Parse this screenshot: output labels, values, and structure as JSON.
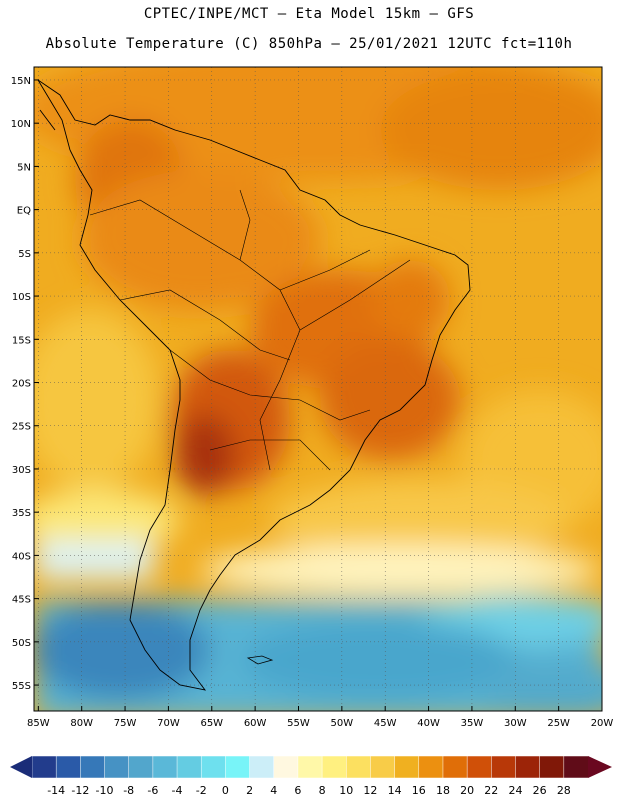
{
  "title": {
    "line1": "CPTEC/INPE/MCT –  Eta Model 15km – GFS",
    "line2": "Absolute Temperature (C) 850hPa – 25/01/2021 12UTC fct=110h"
  },
  "map": {
    "lat_labels": [
      "15N",
      "10N",
      "5N",
      "EQ",
      "5S",
      "10S",
      "15S",
      "20S",
      "25S",
      "30S",
      "35S",
      "40S",
      "45S",
      "50S",
      "55S"
    ],
    "lat_values": [
      15,
      10,
      5,
      0,
      -5,
      -10,
      -15,
      -20,
      -25,
      -30,
      -35,
      -40,
      -45,
      -50,
      -55
    ],
    "lon_labels": [
      "85W",
      "80W",
      "75W",
      "70W",
      "65W",
      "60W",
      "55W",
      "50W",
      "45W",
      "40W",
      "35W",
      "30W",
      "25W",
      "20W"
    ],
    "lon_values": [
      -85,
      -80,
      -75,
      -70,
      -65,
      -60,
      -55,
      -50,
      -45,
      -40,
      -35,
      -30,
      -25,
      -20
    ],
    "lon_range": [
      -85.5,
      -20
    ],
    "lat_range": [
      -58,
      16.5
    ],
    "grid": "dotted"
  },
  "colorbar": {
    "labels": [
      "-14",
      "-12",
      "-10",
      "-8",
      "-6",
      "-4",
      "-2",
      "0",
      "2",
      "4",
      "6",
      "8",
      "10",
      "12",
      "14",
      "16",
      "18",
      "20",
      "22",
      "24",
      "26",
      "28"
    ],
    "colors": [
      "#223c8c",
      "#2a5aa8",
      "#3678b8",
      "#4692c4",
      "#52a6cc",
      "#5ab8d8",
      "#64cce2",
      "#6ee0ee",
      "#78f4f8",
      "#cceef8",
      "#fff8e0",
      "#fff8a8",
      "#fff080",
      "#fce060",
      "#f8cc48",
      "#f0b020",
      "#ec9010",
      "#e06e08",
      "#d05008",
      "#b83808",
      "#9c2408",
      "#801808",
      "#600c18"
    ]
  }
}
